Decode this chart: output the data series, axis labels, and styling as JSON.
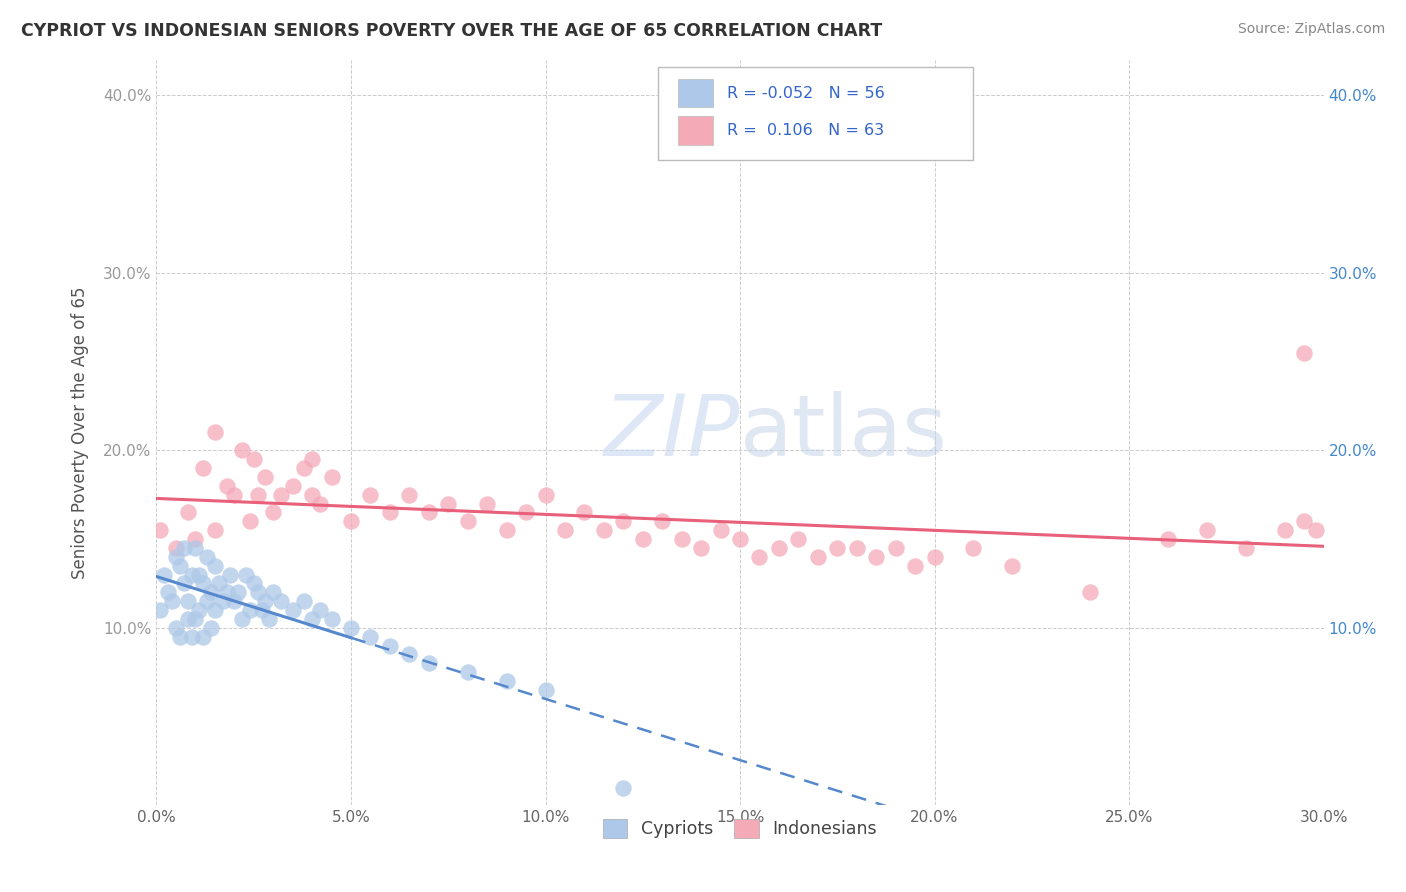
{
  "title": "CYPRIOT VS INDONESIAN SENIORS POVERTY OVER THE AGE OF 65 CORRELATION CHART",
  "source": "Source: ZipAtlas.com",
  "ylabel": "Seniors Poverty Over the Age of 65",
  "xlim": [
    0.0,
    0.3
  ],
  "ylim": [
    0.0,
    0.42
  ],
  "xticks": [
    0.0,
    0.05,
    0.1,
    0.15,
    0.2,
    0.25,
    0.3
  ],
  "yticks": [
    0.0,
    0.1,
    0.2,
    0.3,
    0.4
  ],
  "xtick_labels": [
    "0.0%",
    "5.0%",
    "10.0%",
    "15.0%",
    "20.0%",
    "25.0%",
    "30.0%"
  ],
  "ytick_labels_left": [
    "",
    "10.0%",
    "20.0%",
    "30.0%",
    "40.0%"
  ],
  "ytick_labels_right": [
    "",
    "10.0%",
    "20.0%",
    "30.0%",
    "40.0%"
  ],
  "legend_labels": [
    "Cypriots",
    "Indonesians"
  ],
  "cypriot_color": "#adc8e8",
  "indonesian_color": "#f5aab8",
  "cypriot_line_color": "#5588cc",
  "indonesian_line_color": "#e8607a",
  "R_cypriot": -0.052,
  "N_cypriot": 56,
  "R_indonesian": 0.106,
  "N_indonesian": 63,
  "cypriot_x": [
    0.001,
    0.002,
    0.003,
    0.004,
    0.005,
    0.005,
    0.006,
    0.006,
    0.007,
    0.007,
    0.008,
    0.008,
    0.009,
    0.009,
    0.01,
    0.01,
    0.011,
    0.011,
    0.012,
    0.012,
    0.013,
    0.013,
    0.014,
    0.014,
    0.015,
    0.015,
    0.016,
    0.017,
    0.018,
    0.019,
    0.02,
    0.021,
    0.022,
    0.023,
    0.024,
    0.025,
    0.026,
    0.027,
    0.028,
    0.029,
    0.03,
    0.032,
    0.035,
    0.038,
    0.04,
    0.042,
    0.045,
    0.05,
    0.055,
    0.06,
    0.065,
    0.07,
    0.08,
    0.09,
    0.1,
    0.12
  ],
  "cypriot_y": [
    0.11,
    0.13,
    0.12,
    0.115,
    0.14,
    0.1,
    0.135,
    0.095,
    0.125,
    0.145,
    0.115,
    0.105,
    0.13,
    0.095,
    0.145,
    0.105,
    0.13,
    0.11,
    0.125,
    0.095,
    0.14,
    0.115,
    0.12,
    0.1,
    0.135,
    0.11,
    0.125,
    0.115,
    0.12,
    0.13,
    0.115,
    0.12,
    0.105,
    0.13,
    0.11,
    0.125,
    0.12,
    0.11,
    0.115,
    0.105,
    0.12,
    0.115,
    0.11,
    0.115,
    0.105,
    0.11,
    0.105,
    0.1,
    0.095,
    0.09,
    0.085,
    0.08,
    0.075,
    0.07,
    0.065,
    0.01
  ],
  "indonesian_x": [
    0.001,
    0.005,
    0.008,
    0.01,
    0.012,
    0.015,
    0.015,
    0.018,
    0.02,
    0.022,
    0.024,
    0.025,
    0.026,
    0.028,
    0.03,
    0.032,
    0.035,
    0.038,
    0.04,
    0.04,
    0.042,
    0.045,
    0.05,
    0.055,
    0.06,
    0.065,
    0.07,
    0.075,
    0.08,
    0.085,
    0.09,
    0.095,
    0.1,
    0.105,
    0.11,
    0.115,
    0.12,
    0.125,
    0.13,
    0.135,
    0.14,
    0.145,
    0.15,
    0.155,
    0.16,
    0.165,
    0.17,
    0.175,
    0.18,
    0.185,
    0.19,
    0.195,
    0.2,
    0.21,
    0.22,
    0.24,
    0.26,
    0.27,
    0.28,
    0.29,
    0.295,
    0.295,
    0.298
  ],
  "indonesian_y": [
    0.155,
    0.145,
    0.165,
    0.15,
    0.19,
    0.21,
    0.155,
    0.18,
    0.175,
    0.2,
    0.16,
    0.195,
    0.175,
    0.185,
    0.165,
    0.175,
    0.18,
    0.19,
    0.175,
    0.195,
    0.17,
    0.185,
    0.16,
    0.175,
    0.165,
    0.175,
    0.165,
    0.17,
    0.16,
    0.17,
    0.155,
    0.165,
    0.175,
    0.155,
    0.165,
    0.155,
    0.16,
    0.15,
    0.16,
    0.15,
    0.145,
    0.155,
    0.15,
    0.14,
    0.145,
    0.15,
    0.14,
    0.145,
    0.145,
    0.14,
    0.145,
    0.135,
    0.14,
    0.145,
    0.135,
    0.12,
    0.15,
    0.155,
    0.145,
    0.155,
    0.255,
    0.16,
    0.155
  ]
}
